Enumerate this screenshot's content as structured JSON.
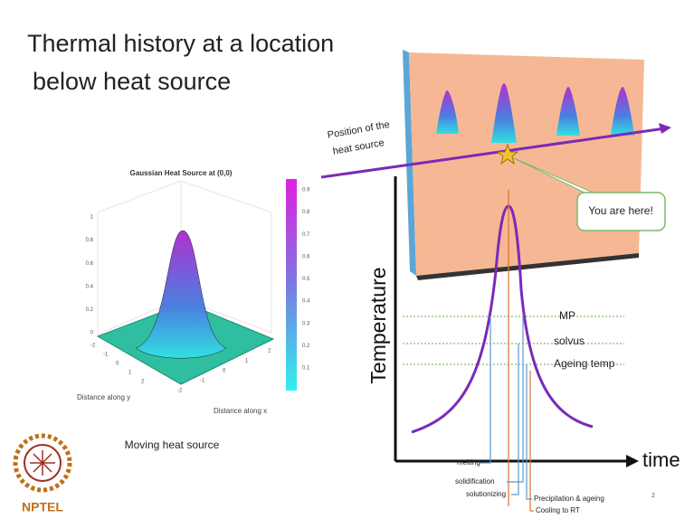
{
  "slide": {
    "title_lines": [
      "Thermal history at a location",
      "below heat source"
    ],
    "left_plot": {
      "title": "Gaussian Heat Source at (0,0)",
      "colorbar_ticks": [
        0.1,
        0.2,
        0.3,
        0.4,
        0.5,
        0.6,
        0.7,
        0.8,
        0.9
      ],
      "z_ticks": [
        0,
        0.2,
        0.4,
        0.6,
        0.8,
        1
      ],
      "x_ticks": [
        -2,
        -1,
        0,
        1,
        2
      ],
      "y_ticks": [
        -2,
        -1,
        0,
        1,
        2
      ],
      "y_label": "Distance along y",
      "x_label": "Distance along x",
      "caption": "Moving heat source"
    },
    "right_diagram": {
      "source_label_lines": [
        "Position of the",
        "heat source"
      ],
      "callout": "You are here!",
      "y_axis": "Temperature",
      "x_axis": "time",
      "levels": [
        "MP",
        "solvus",
        "Ageing temp"
      ],
      "stages": [
        "melting",
        "solidification",
        "solutionizing",
        "Precipitation & ageing",
        "Cooling to RT"
      ]
    },
    "logo": "NPTEL",
    "page_number": "2"
  }
}
